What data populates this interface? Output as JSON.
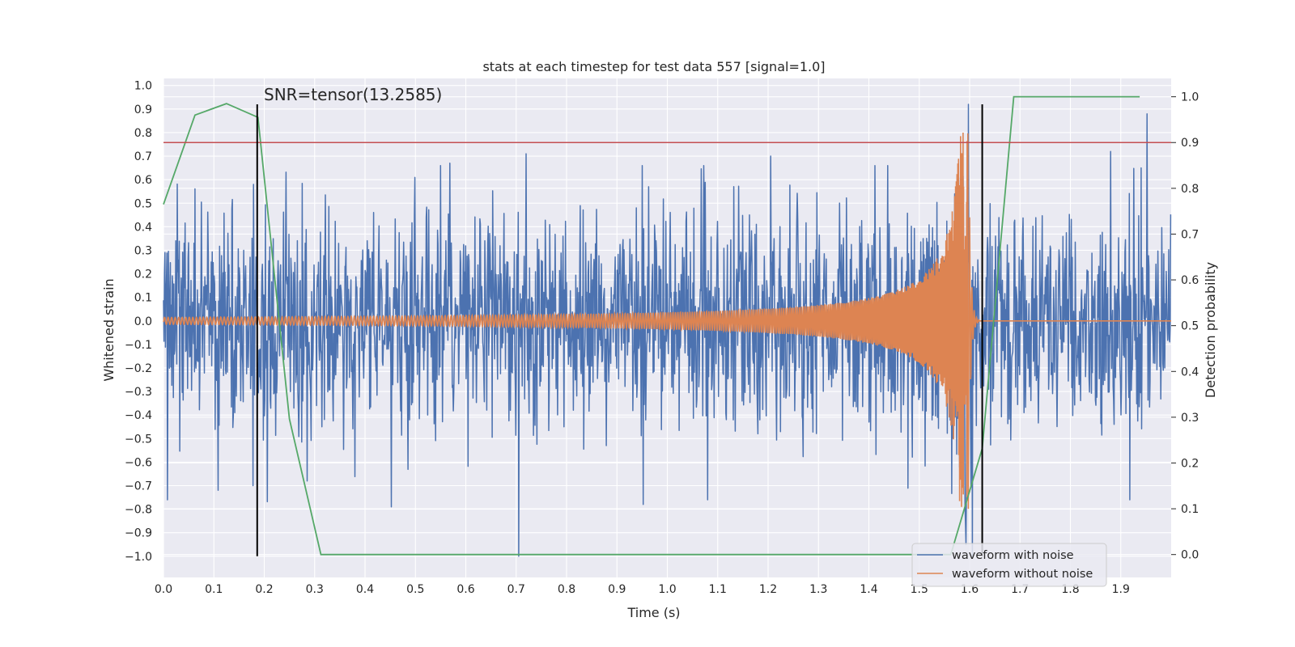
{
  "chart_data": {
    "type": "line",
    "title": "stats at each timestep for test data 557 [signal=1.0]",
    "xlabel": "Time (s)",
    "ylabel": "Whitened strain",
    "y2label": "Detection probability",
    "xlim": [
      0.0,
      2.0
    ],
    "ylim": [
      -1.09,
      1.03
    ],
    "y2lim": [
      -0.05,
      1.04
    ],
    "xticks": [
      "0.0",
      "0.1",
      "0.2",
      "0.3",
      "0.4",
      "0.5",
      "0.6",
      "0.7",
      "0.8",
      "0.9",
      "1.0",
      "1.1",
      "1.2",
      "1.3",
      "1.4",
      "1.5",
      "1.6",
      "1.7",
      "1.8",
      "1.9"
    ],
    "yticks": [
      "1.0",
      "0.9",
      "0.8",
      "0.7",
      "0.6",
      "0.5",
      "0.4",
      "0.3",
      "0.2",
      "0.1",
      "0.0",
      "−0.1",
      "−0.2",
      "−0.3",
      "−0.4",
      "−0.5",
      "−0.6",
      "−0.7",
      "−0.8",
      "−0.9",
      "−1.0"
    ],
    "y2ticks": [
      "0.0",
      "0.1",
      "0.2",
      "0.3",
      "0.4",
      "0.5",
      "0.6",
      "0.7",
      "0.8",
      "0.9",
      "1.0"
    ],
    "annotation": "SNR=tensor(13.2585)",
    "threshold": {
      "y2": 0.9,
      "color": "#c44e52"
    },
    "vlines": [
      {
        "x": 0.186,
        "ymin": -1.0,
        "ymax": 0.92,
        "color": "#000000"
      },
      {
        "x": 1.625,
        "ymin": -1.0,
        "ymax": 0.92,
        "color": "#000000"
      }
    ],
    "series": [
      {
        "name": "waveform with noise",
        "color": "#4c72b0",
        "kind": "noise",
        "samples": 2048,
        "seed": 557,
        "approx_amplitude": 0.3,
        "spikes": [
          {
            "x": 0.008,
            "y": -0.76
          },
          {
            "x": 0.108,
            "y": -0.72
          },
          {
            "x": 0.178,
            "y": -0.7
          },
          {
            "x": 0.179,
            "y": 0.58
          },
          {
            "x": 0.285,
            "y": -0.68
          },
          {
            "x": 0.452,
            "y": -0.79
          },
          {
            "x": 0.568,
            "y": 0.67
          },
          {
            "x": 0.705,
            "y": -1.0
          },
          {
            "x": 0.72,
            "y": 0.71
          },
          {
            "x": 0.952,
            "y": -0.78
          },
          {
            "x": 1.08,
            "y": -0.76
          },
          {
            "x": 1.205,
            "y": 0.7
          },
          {
            "x": 1.598,
            "y": 0.92
          },
          {
            "x": 1.605,
            "y": -1.0
          },
          {
            "x": 1.88,
            "y": 0.72
          },
          {
            "x": 1.94,
            "y": 0.65
          },
          {
            "x": 1.952,
            "y": 0.88
          },
          {
            "x": 1.918,
            "y": -0.76
          }
        ]
      },
      {
        "name": "waveform without noise",
        "color": "#dd8452",
        "kind": "chirp",
        "merger_time": 1.6,
        "peak_amplitude": 0.8,
        "start_amplitude": 0.015
      },
      {
        "name": "detection probability",
        "color": "#55a868",
        "axis": "right",
        "x": [
          0.0,
          0.0625,
          0.125,
          0.1875,
          0.25,
          0.3125,
          0.375,
          1.5,
          1.5625,
          1.625,
          1.6875,
          1.75,
          1.8125,
          1.875,
          1.9375
        ],
        "y": [
          0.765,
          0.96,
          0.985,
          0.955,
          0.296,
          0.0,
          0.0,
          0.0,
          0.0,
          0.232,
          1.0,
          1.0,
          1.0,
          1.0,
          1.0
        ]
      }
    ],
    "legend": {
      "location": "lower-right",
      "entries": [
        "waveform with noise",
        "waveform without noise"
      ]
    },
    "background": "#eaeaf2",
    "grid": true
  }
}
